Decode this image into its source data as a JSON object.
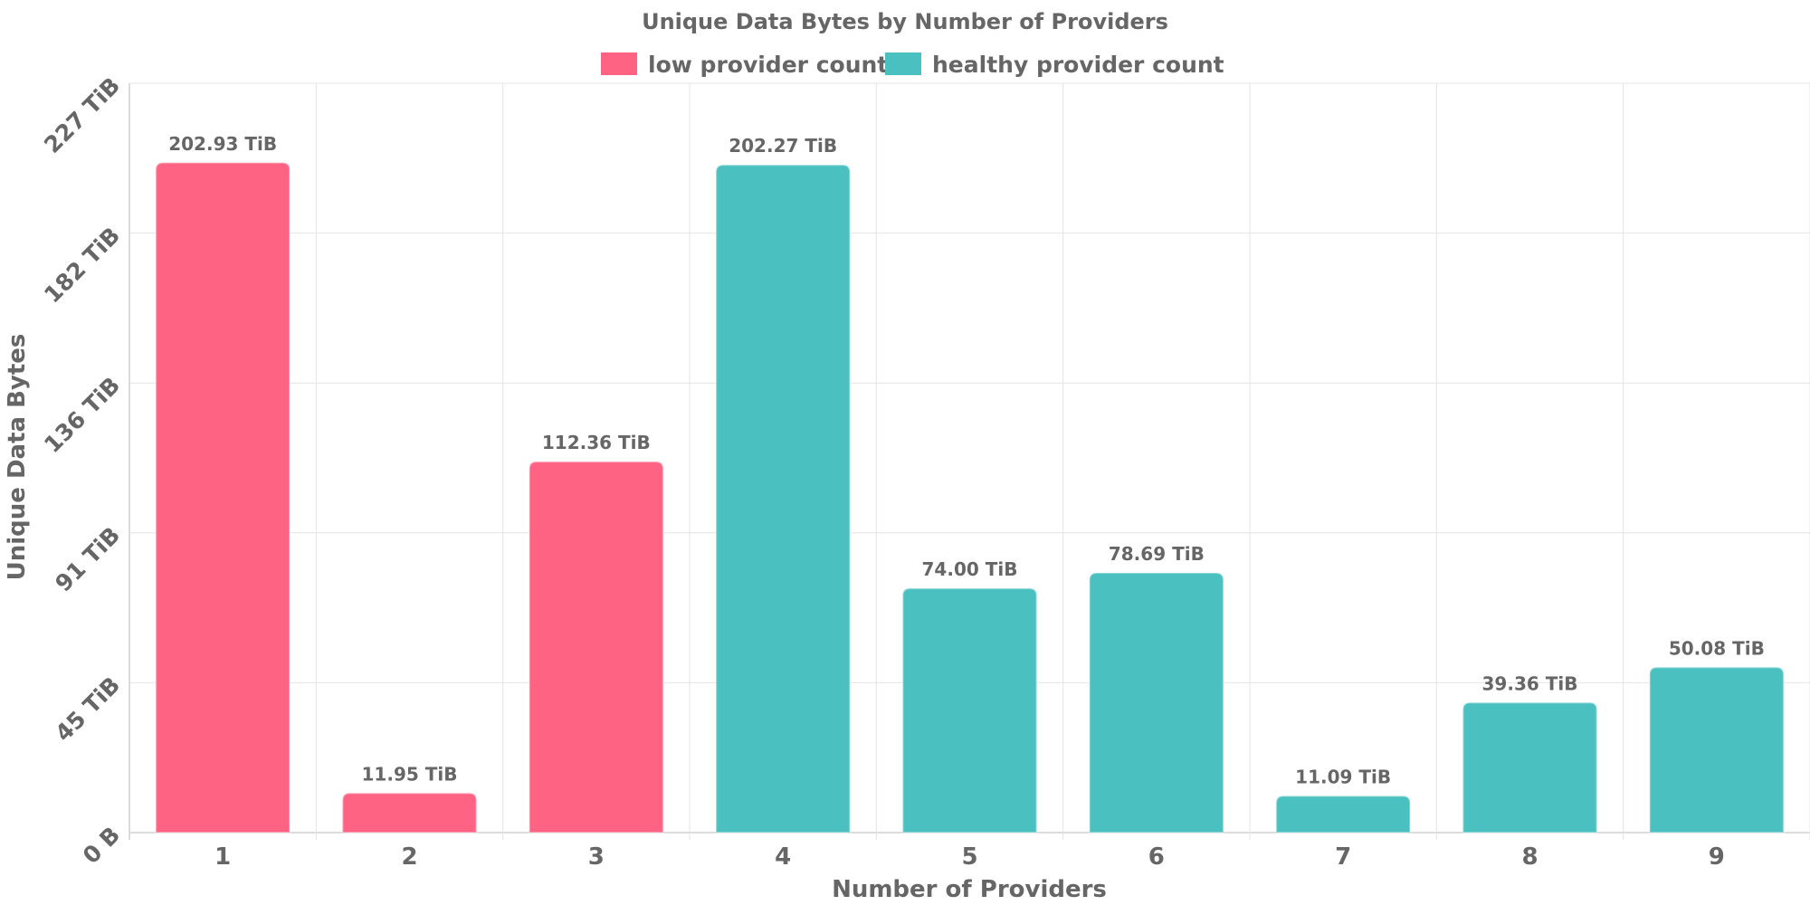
{
  "chart_data": {
    "type": "bar",
    "title": "Unique Data Bytes by Number of Providers",
    "xlabel": "Number of Providers",
    "ylabel": "Unique Data Bytes",
    "categories": [
      "1",
      "2",
      "3",
      "4",
      "5",
      "6",
      "7",
      "8",
      "9"
    ],
    "values": [
      202.93,
      11.95,
      112.36,
      202.27,
      74.0,
      78.69,
      11.09,
      39.36,
      50.08
    ],
    "value_labels": [
      "202.93 TiB",
      "11.95 TiB",
      "112.36 TiB",
      "202.27 TiB",
      "74.00 TiB",
      "78.69 TiB",
      "11.09 TiB",
      "39.36 TiB",
      "50.08 TiB"
    ],
    "value_unit": "TiB",
    "series_index": [
      0,
      0,
      0,
      1,
      1,
      1,
      1,
      1,
      1
    ],
    "series": [
      {
        "name": "low provider count",
        "color": "#ff6384"
      },
      {
        "name": "healthy provider count",
        "color": "#4bc0c0"
      }
    ],
    "ylim": [
      0,
      227
    ],
    "yticks": [
      0,
      45.4,
      90.8,
      136.2,
      181.6,
      227
    ],
    "ytick_labels": [
      "0 B",
      "45 TiB",
      "91 TiB",
      "136 TiB",
      "182 TiB",
      "227 TiB"
    ],
    "grid": true,
    "legend_position": "top-center"
  }
}
